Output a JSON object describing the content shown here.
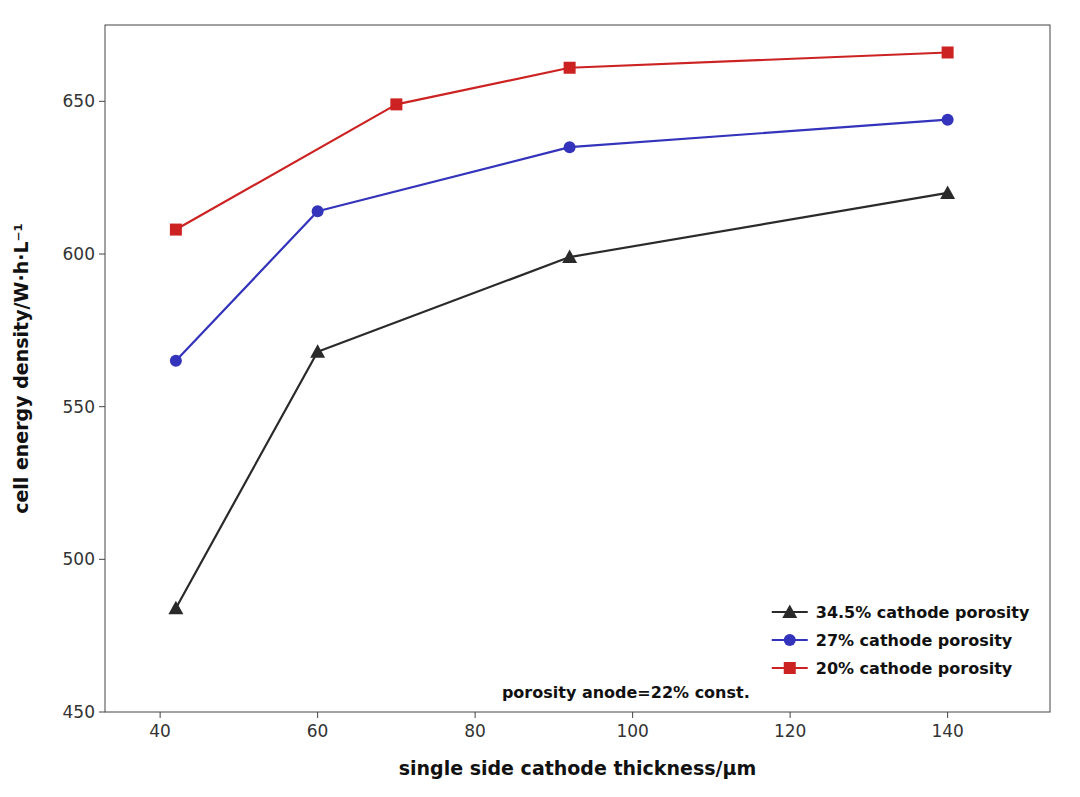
{
  "chart_data": {
    "type": "line",
    "xlabel": "single side cathode thickness/μm",
    "ylabel": "cell energy density/W·h·L⁻¹",
    "xlim": [
      33,
      153
    ],
    "ylim": [
      450,
      675
    ],
    "xticks": [
      40,
      60,
      80,
      100,
      120,
      140
    ],
    "yticks": [
      450,
      500,
      550,
      600,
      650
    ],
    "grid": false,
    "legend": "lower right",
    "annotation": "porosity anode=22% const.",
    "series": [
      {
        "name": "34.5% cathode porosity",
        "color": "#2a2a2a",
        "marker": "triangle",
        "x": [
          42,
          60,
          92,
          140
        ],
        "values": [
          484,
          568,
          599,
          620
        ]
      },
      {
        "name": "27% cathode porosity",
        "color": "#3333bb",
        "marker": "circle",
        "x": [
          42,
          60,
          92,
          140
        ],
        "values": [
          565,
          614,
          635,
          644
        ]
      },
      {
        "name": "20% cathode porosity",
        "color": "#cc2222",
        "marker": "square",
        "x": [
          42,
          70,
          92,
          140
        ],
        "values": [
          608,
          649,
          661,
          666
        ]
      }
    ]
  }
}
